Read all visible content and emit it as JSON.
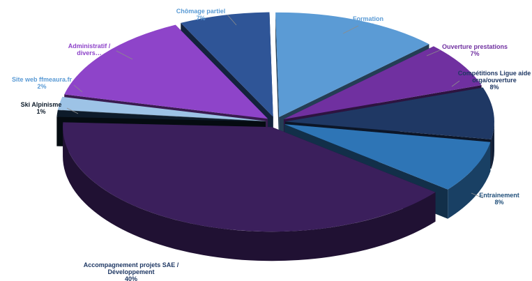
{
  "chart_data": {
    "type": "pie",
    "style": "3d-exploded",
    "slices": [
      {
        "label": "Formation",
        "value": 13,
        "pct": "13%",
        "color": "#5b9bd5",
        "label_color": "#5b9bd5"
      },
      {
        "label": "Ouverture prestations",
        "value": 7,
        "pct": "7%",
        "color": "#7030a0",
        "label_color": "#7030a0"
      },
      {
        "label": "Compétitions Ligue aide orga/ouverture",
        "value": 8,
        "pct": "8%",
        "color": "#1f3864",
        "label_color": "#1f3864"
      },
      {
        "label": "Entrainement",
        "value": 8,
        "pct": "8%",
        "color": "#2e75b6",
        "label_color": "#1f4e79"
      },
      {
        "label": "Accompagnement projets SAE / Développement",
        "value": 40,
        "pct": "40%",
        "color": "#3b1f5c",
        "label_color": "#1f3864"
      },
      {
        "label": "Ski Alpinisme",
        "value": 1,
        "pct": "1%",
        "color": "#0d1b2a",
        "label_color": "#0d1b2a"
      },
      {
        "label": "Site web ffmeaura.fr",
        "value": 2,
        "pct": "2%",
        "color": "#9dc3e6",
        "label_color": "#5b9bd5"
      },
      {
        "label": "Administratif / divers…",
        "value": 14,
        "pct": "",
        "color": "#8e44c9",
        "label_color": "#8e44c9"
      },
      {
        "label": "Chômage partiel",
        "value": 7,
        "pct": "7%",
        "color": "#2f5597",
        "label_color": "#5b9bd5"
      }
    ],
    "legend": "none"
  }
}
